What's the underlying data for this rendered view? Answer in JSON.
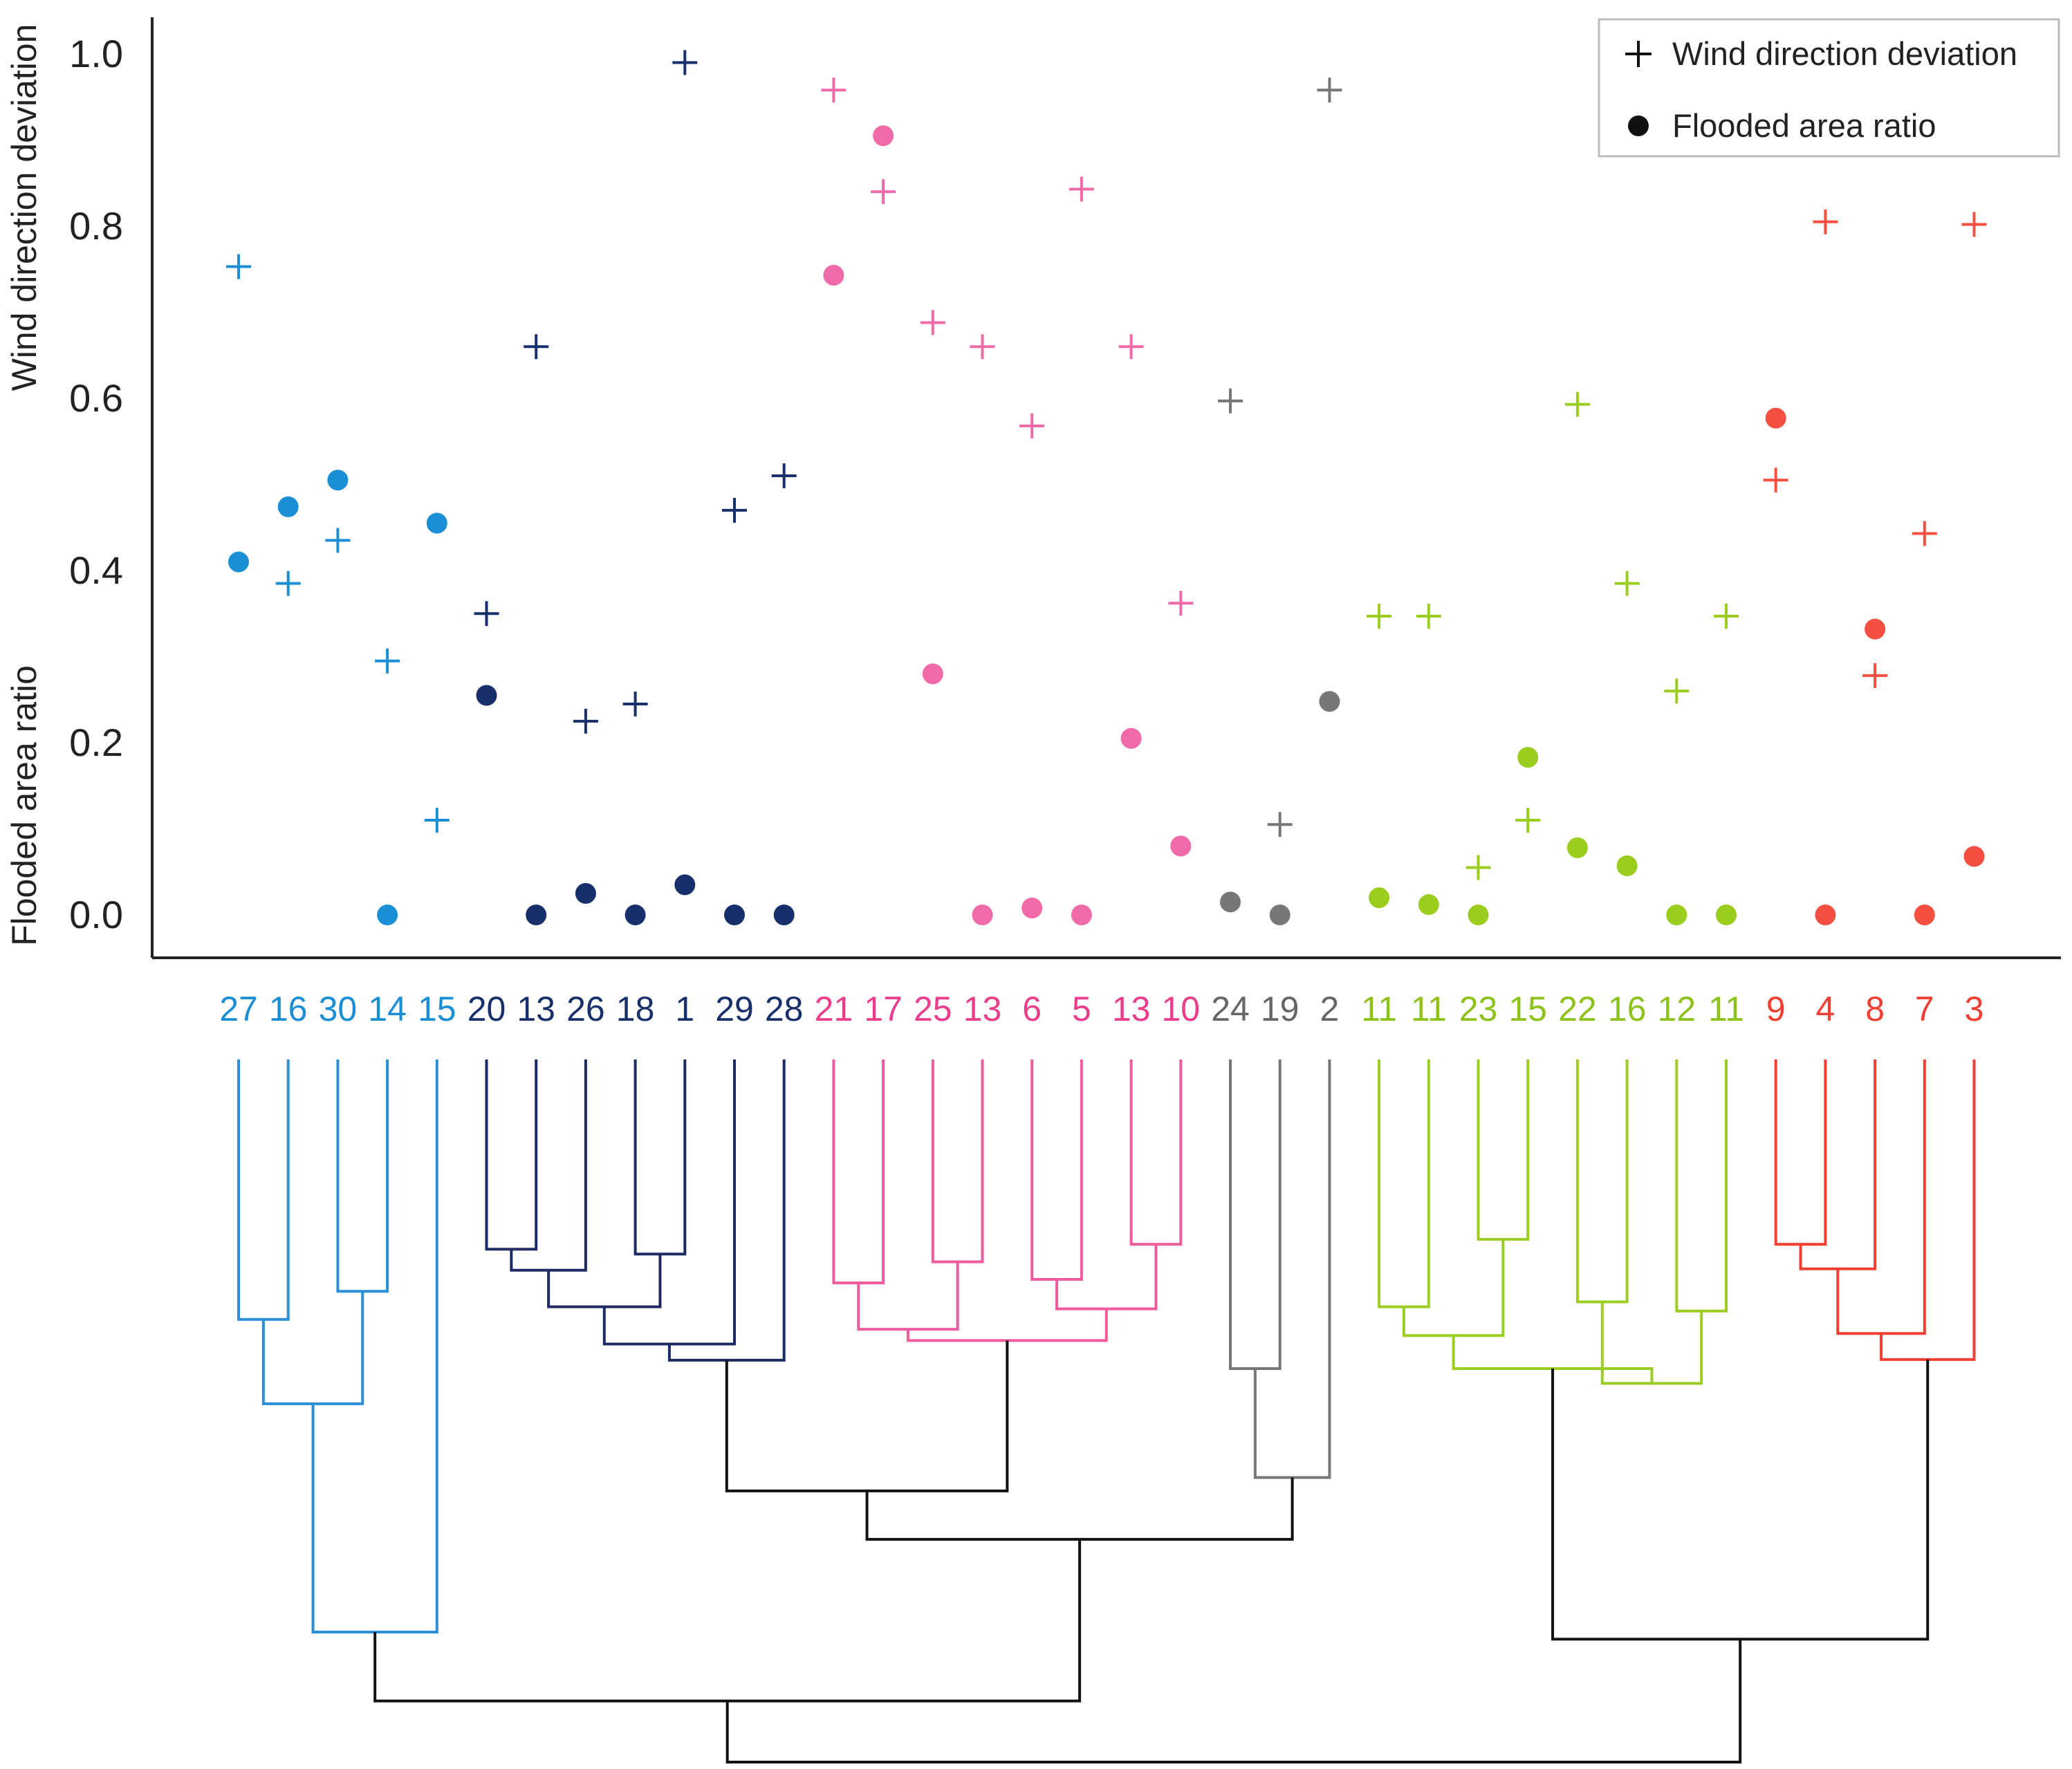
{
  "chart_data": {
    "type": "scatter",
    "ylabel_top": "Wind direction deviation",
    "ylabel_bottom": "Flooded area ratio",
    "ylim": [
      0,
      1
    ],
    "yticks": [
      "0.0",
      "0.2",
      "0.4",
      "0.6",
      "0.8",
      "1.0"
    ],
    "grid": false,
    "legend_position": "top-right",
    "legend": [
      {
        "marker": "plus",
        "label": "Wind direction deviation"
      },
      {
        "marker": "circle",
        "label": "Flooded area ratio"
      }
    ],
    "clusters": [
      {
        "color": "#1a8fd6",
        "leaf_color": "#1a8fd6",
        "line_color": "#2b90d9"
      },
      {
        "color": "#17306b",
        "leaf_color": "#17306b",
        "line_color": "#1c2b63"
      },
      {
        "color": "#f06aaa",
        "leaf_color": "#ec3c8c",
        "line_color": "#f05a9e"
      },
      {
        "color": "#777777",
        "leaf_color": "#666666",
        "line_color": "#777777"
      },
      {
        "color": "#9acd1e",
        "leaf_color": "#8cc21a",
        "line_color": "#9ccd22"
      },
      {
        "color": "#f44f41",
        "leaf_color": "#f03e33",
        "line_color": "#f03e33"
      }
    ],
    "leaves": [
      {
        "label": "27",
        "cluster": 0,
        "wind": 0.753,
        "flood": 0.41
      },
      {
        "label": "16",
        "cluster": 0,
        "wind": 0.385,
        "flood": 0.474
      },
      {
        "label": "30",
        "cluster": 0,
        "wind": 0.435,
        "flood": 0.505
      },
      {
        "label": "14",
        "cluster": 0,
        "wind": 0.295,
        "flood": 0.0
      },
      {
        "label": "15",
        "cluster": 0,
        "wind": 0.11,
        "flood": 0.455
      },
      {
        "label": "20",
        "cluster": 1,
        "wind": 0.35,
        "flood": 0.255
      },
      {
        "label": "13",
        "cluster": 1,
        "wind": 0.66,
        "flood": 0.0
      },
      {
        "label": "26",
        "cluster": 1,
        "wind": 0.225,
        "flood": 0.025
      },
      {
        "label": "18",
        "cluster": 1,
        "wind": 0.245,
        "flood": 0.0
      },
      {
        "label": "1",
        "cluster": 1,
        "wind": 0.99,
        "flood": 0.035
      },
      {
        "label": "29",
        "cluster": 1,
        "wind": 0.47,
        "flood": 0.0
      },
      {
        "label": "28",
        "cluster": 1,
        "wind": 0.51,
        "flood": 0.0
      },
      {
        "label": "21",
        "cluster": 2,
        "wind": 0.958,
        "flood": 0.743
      },
      {
        "label": "17",
        "cluster": 2,
        "wind": 0.84,
        "flood": 0.905
      },
      {
        "label": "25",
        "cluster": 2,
        "wind": 0.688,
        "flood": 0.28
      },
      {
        "label": "13",
        "cluster": 2,
        "wind": 0.66,
        "flood": 0.0
      },
      {
        "label": "6",
        "cluster": 2,
        "wind": 0.568,
        "flood": 0.008
      },
      {
        "label": "5",
        "cluster": 2,
        "wind": 0.843,
        "flood": 0.0
      },
      {
        "label": "13",
        "cluster": 2,
        "wind": 0.66,
        "flood": 0.205
      },
      {
        "label": "10",
        "cluster": 2,
        "wind": 0.362,
        "flood": 0.08
      },
      {
        "label": "24",
        "cluster": 3,
        "wind": 0.597,
        "flood": 0.015
      },
      {
        "label": "19",
        "cluster": 3,
        "wind": 0.105,
        "flood": 0.0
      },
      {
        "label": "2",
        "cluster": 3,
        "wind": 0.958,
        "flood": 0.248
      },
      {
        "label": "11",
        "cluster": 4,
        "wind": 0.347,
        "flood": 0.02
      },
      {
        "label": "11",
        "cluster": 4,
        "wind": 0.347,
        "flood": 0.012
      },
      {
        "label": "23",
        "cluster": 4,
        "wind": 0.055,
        "flood": 0.0
      },
      {
        "label": "15",
        "cluster": 4,
        "wind": 0.11,
        "flood": 0.183
      },
      {
        "label": "22",
        "cluster": 4,
        "wind": 0.593,
        "flood": 0.078
      },
      {
        "label": "16",
        "cluster": 4,
        "wind": 0.385,
        "flood": 0.057
      },
      {
        "label": "12",
        "cluster": 4,
        "wind": 0.26,
        "flood": 0.0
      },
      {
        "label": "11",
        "cluster": 4,
        "wind": 0.347,
        "flood": 0.0
      },
      {
        "label": "9",
        "cluster": 5,
        "wind": 0.505,
        "flood": 0.577
      },
      {
        "label": "4",
        "cluster": 5,
        "wind": 0.805,
        "flood": 0.0
      },
      {
        "label": "8",
        "cluster": 5,
        "wind": 0.278,
        "flood": 0.332
      },
      {
        "label": "7",
        "cluster": 5,
        "wind": 0.443,
        "flood": 0.0
      },
      {
        "label": "3",
        "cluster": 5,
        "wind": 0.802,
        "flood": 0.068
      }
    ],
    "dendrogram": {
      "leaf_line_top": 0.0,
      "height_axis": "merge height in 0-1 units below the leaves (1 = root)",
      "merges": [
        {
          "left": "L0",
          "right": "L1",
          "height": 0.37,
          "color": 0,
          "id": "A1"
        },
        {
          "left": "L2",
          "right": "L3",
          "height": 0.33,
          "color": 0,
          "id": "A2"
        },
        {
          "left": "A1",
          "right": "A2",
          "height": 0.49,
          "color": 0,
          "id": "A3"
        },
        {
          "left": "A3",
          "right": "L4",
          "height": 0.815,
          "color": 0,
          "id": "A4"
        },
        {
          "left": "L5",
          "right": "L6",
          "height": 0.27,
          "color": 1,
          "id": "B1"
        },
        {
          "left": "B1",
          "right": "L7",
          "height": 0.3,
          "color": 1,
          "id": "B2"
        },
        {
          "left": "L8",
          "right": "L9",
          "height": 0.277,
          "color": 1,
          "id": "B3"
        },
        {
          "left": "B2",
          "right": "B3",
          "height": 0.352,
          "color": 1,
          "id": "B4"
        },
        {
          "left": "B4",
          "right": "L10",
          "height": 0.405,
          "color": 1,
          "id": "B5"
        },
        {
          "left": "B5",
          "right": "L11",
          "height": 0.428,
          "color": 1,
          "id": "B6"
        },
        {
          "left": "L12",
          "right": "L13",
          "height": 0.318,
          "color": 2,
          "id": "C1"
        },
        {
          "left": "L14",
          "right": "L15",
          "height": 0.288,
          "color": 2,
          "id": "C2"
        },
        {
          "left": "C1",
          "right": "C2",
          "height": 0.384,
          "color": 2,
          "id": "C3"
        },
        {
          "left": "L16",
          "right": "L17",
          "height": 0.313,
          "color": 2,
          "id": "C4"
        },
        {
          "left": "L18",
          "right": "L19",
          "height": 0.263,
          "color": 2,
          "id": "C5"
        },
        {
          "left": "C4",
          "right": "C5",
          "height": 0.355,
          "color": 2,
          "id": "C6"
        },
        {
          "left": "C3",
          "right": "C6",
          "height": 0.4,
          "color": 2,
          "id": "C7"
        },
        {
          "left": "B6",
          "right": "C7",
          "height": 0.614,
          "color": -1,
          "id": "D1"
        },
        {
          "left": "L20",
          "right": "L21",
          "height": 0.44,
          "color": 3,
          "id": "E1"
        },
        {
          "left": "E1",
          "right": "L22",
          "height": 0.595,
          "color": 3,
          "id": "E2"
        },
        {
          "left": "D1",
          "right": "E2",
          "height": 0.683,
          "color": -1,
          "id": "D2"
        },
        {
          "left": "A4",
          "right": "D2",
          "height": 0.913,
          "color": -1,
          "id": "D3"
        },
        {
          "left": "L23",
          "right": "L24",
          "height": 0.352,
          "color": 4,
          "id": "F1"
        },
        {
          "left": "L25",
          "right": "L26",
          "height": 0.256,
          "color": 4,
          "id": "F2"
        },
        {
          "left": "F1",
          "right": "F2",
          "height": 0.393,
          "color": 4,
          "id": "F3"
        },
        {
          "left": "L27",
          "right": "L28",
          "height": 0.345,
          "color": 4,
          "id": "F4"
        },
        {
          "left": "L29",
          "right": "L30",
          "height": 0.358,
          "color": 4,
          "id": "F5"
        },
        {
          "left": "F4",
          "right": "F5",
          "height": 0.461,
          "color": 4,
          "id": "F6"
        },
        {
          "left": "F3",
          "right": "F6",
          "height": 0.44,
          "color": 4,
          "id": "F7"
        },
        {
          "left": "L31",
          "right": "L32",
          "height": 0.263,
          "color": 5,
          "id": "G1"
        },
        {
          "left": "G1",
          "right": "L33",
          "height": 0.298,
          "color": 5,
          "id": "G2"
        },
        {
          "left": "G2",
          "right": "L34",
          "height": 0.39,
          "color": 5,
          "id": "G3"
        },
        {
          "left": "G3",
          "right": "L35",
          "height": 0.427,
          "color": 5,
          "id": "G4"
        },
        {
          "left": "F7",
          "right": "G4",
          "height": 0.825,
          "color": -1,
          "id": "H1"
        },
        {
          "left": "D3",
          "right": "H1",
          "height": 1.0,
          "color": -1,
          "id": "ROOT"
        }
      ]
    }
  }
}
